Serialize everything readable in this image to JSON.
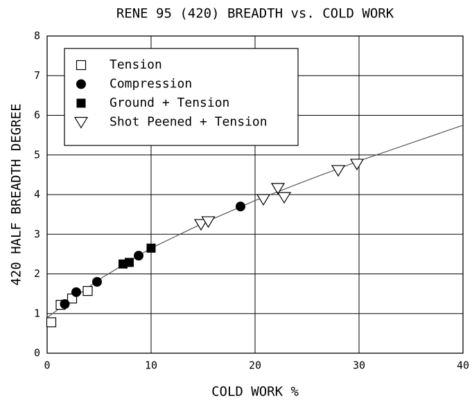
{
  "chart_data": {
    "type": "scatter",
    "title": "RENE 95 (420) BREADTH vs. COLD WORK",
    "x_label": "COLD WORK %",
    "y_label": "420 HALF BREADTH DEGREE",
    "xlim": [
      0,
      40
    ],
    "xticks": [
      0,
      10,
      20,
      30,
      40
    ],
    "ylim": [
      0,
      8
    ],
    "yticks": [
      0,
      1,
      2,
      3,
      4,
      5,
      6,
      7,
      8
    ],
    "grid": true,
    "legend": "upper left",
    "series": [
      {
        "name": "Tension",
        "color": "#000000",
        "marker": "square-open",
        "x": [
          0.4,
          1.3,
          2.4,
          3.9
        ],
        "values": [
          0.78,
          1.22,
          1.38,
          1.57
        ]
      },
      {
        "name": "Compression",
        "color": "#000000",
        "marker": "circle",
        "x": [
          1.7,
          2.8,
          4.8,
          8.8,
          18.6
        ],
        "values": [
          1.24,
          1.54,
          1.8,
          2.46,
          3.7
        ]
      },
      {
        "name": "Ground + Tension",
        "color": "#000000",
        "marker": "square",
        "x": [
          7.3,
          7.9,
          10.0
        ],
        "values": [
          2.25,
          2.29,
          2.65
        ]
      },
      {
        "name": "Shot Peened + Tension",
        "color": "#000000",
        "marker": "triangle-open",
        "x": [
          14.8,
          15.5,
          20.8,
          22.2,
          22.8,
          28.0,
          29.8
        ],
        "values": [
          3.25,
          3.32,
          3.88,
          4.16,
          3.93,
          4.61,
          4.77
        ]
      }
    ],
    "curve": {
      "color": "#555555",
      "x": [
        0,
        5,
        10,
        15,
        20,
        25,
        30,
        35,
        40
      ],
      "values": [
        0.9,
        1.86,
        2.65,
        3.28,
        3.85,
        4.36,
        4.85,
        5.3,
        5.75
      ]
    }
  }
}
